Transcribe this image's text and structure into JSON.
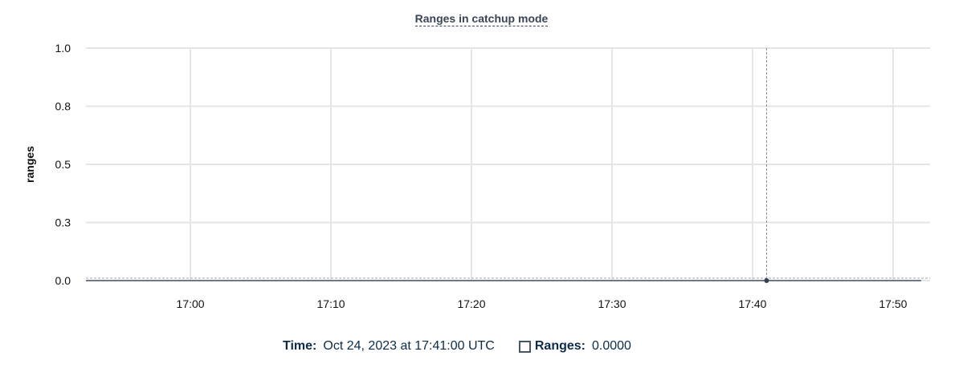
{
  "chart_data": {
    "type": "line",
    "title": "Ranges in catchup mode",
    "ylabel": "ranges",
    "xlabel": "",
    "ylim": [
      0,
      1
    ],
    "y_ticks": [
      {
        "value": 0,
        "label": "0.0"
      },
      {
        "value": 0.25,
        "label": "0.3"
      },
      {
        "value": 0.5,
        "label": "0.5"
      },
      {
        "value": 0.75,
        "label": "0.8"
      },
      {
        "value": 1,
        "label": "1.0"
      }
    ],
    "x_ticks": [
      "17:00",
      "17:10",
      "17:20",
      "17:30",
      "17:40",
      "17:50"
    ],
    "xlim": [
      "16:52:34",
      "17:52:38"
    ],
    "grid": true,
    "series": [
      {
        "name": "Ranges",
        "color": "#475569",
        "x": [
          "16:52:34",
          "17:52:00"
        ],
        "values": [
          0,
          0
        ]
      }
    ],
    "hover": {
      "x": "17:41:00",
      "value": 0
    }
  },
  "legend": {
    "time_label": "Time:",
    "time_value": "Oct 24, 2023 at 17:41:00 UTC",
    "series_label": "Ranges:",
    "series_value": "0.0000"
  }
}
